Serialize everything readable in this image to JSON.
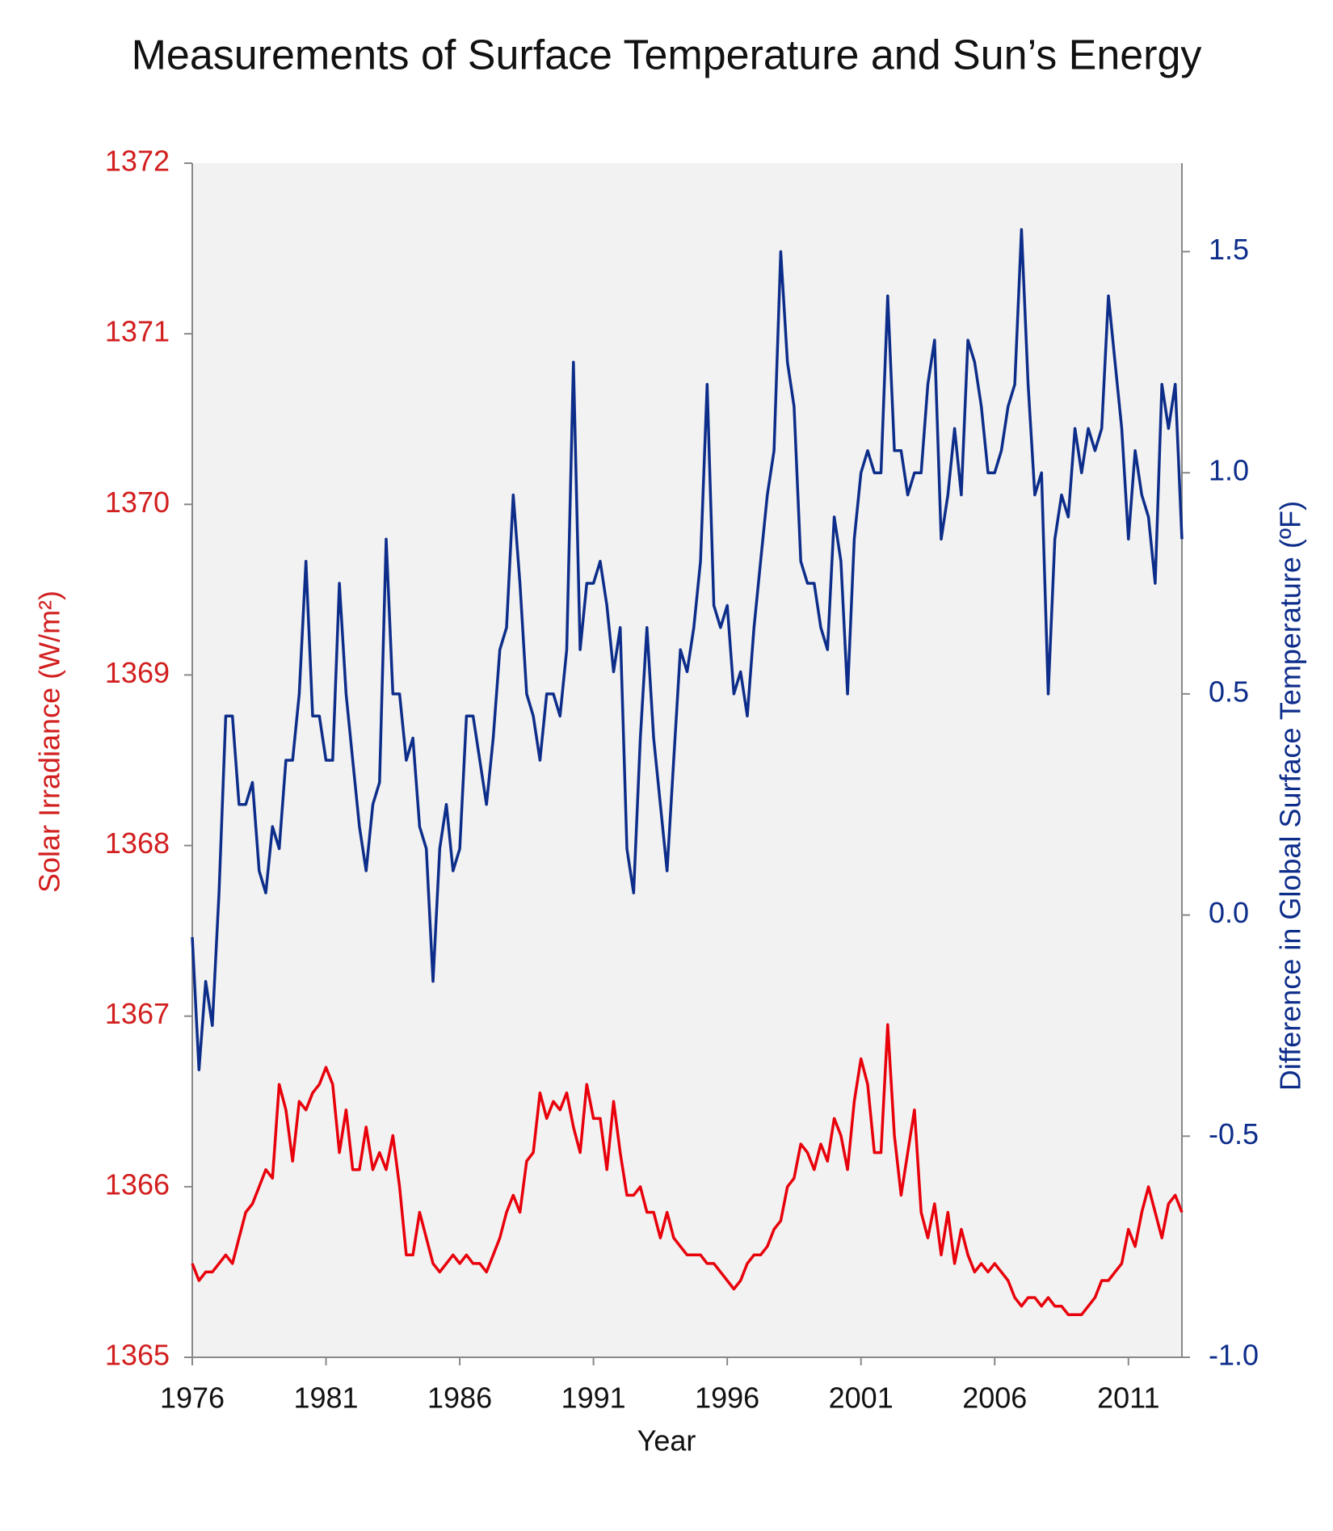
{
  "chart_data": {
    "type": "line",
    "title": "Measurements of Surface Temperature and Sun’s Energy",
    "x_label": "Year",
    "y_label": "Solar Irradiance (W/m²)",
    "y2_label": "Difference in Global Surface Temperature (ºF)",
    "x": [
      1976,
      1976.25,
      1976.5,
      1976.75,
      1977,
      1977.25,
      1977.5,
      1977.75,
      1978,
      1978.25,
      1978.5,
      1978.75,
      1979,
      1979.25,
      1979.5,
      1979.75,
      1980,
      1980.25,
      1980.5,
      1980.75,
      1981,
      1981.25,
      1981.5,
      1981.75,
      1982,
      1982.25,
      1982.5,
      1982.75,
      1983,
      1983.25,
      1983.5,
      1983.75,
      1984,
      1984.25,
      1984.5,
      1984.75,
      1985,
      1985.25,
      1985.5,
      1985.75,
      1986,
      1986.25,
      1986.5,
      1986.75,
      1987,
      1987.25,
      1987.5,
      1987.75,
      1988,
      1988.25,
      1988.5,
      1988.75,
      1989,
      1989.25,
      1989.5,
      1989.75,
      1990,
      1990.25,
      1990.5,
      1990.75,
      1991,
      1991.25,
      1991.5,
      1991.75,
      1992,
      1992.25,
      1992.5,
      1992.75,
      1993,
      1993.25,
      1993.5,
      1993.75,
      1994,
      1994.25,
      1994.5,
      1994.75,
      1995,
      1995.25,
      1995.5,
      1995.75,
      1996,
      1996.25,
      1996.5,
      1996.75,
      1997,
      1997.25,
      1997.5,
      1997.75,
      1998,
      1998.25,
      1998.5,
      1998.75,
      1999,
      1999.25,
      1999.5,
      1999.75,
      2000,
      2000.25,
      2000.5,
      2000.75,
      2001,
      2001.25,
      2001.5,
      2001.75,
      2002,
      2002.25,
      2002.5,
      2002.75,
      2003,
      2003.25,
      2003.5,
      2003.75,
      2004,
      2004.25,
      2004.5,
      2004.75,
      2005,
      2005.25,
      2005.5,
      2005.75,
      2006,
      2006.25,
      2006.5,
      2006.75,
      2007,
      2007.25,
      2007.5,
      2007.75,
      2008,
      2008.25,
      2008.5,
      2008.75,
      2009,
      2009.25,
      2009.5,
      2009.75,
      2010,
      2010.25,
      2010.5,
      2010.75,
      2011,
      2011.25,
      2011.5,
      2011.75,
      2012,
      2012.25,
      2012.5,
      2012.75,
      2013
    ],
    "series": [
      {
        "color": "#e8000b",
        "axis": "y",
        "values": [
          1365.55,
          1365.45,
          1365.5,
          1365.5,
          1365.55,
          1365.6,
          1365.55,
          1365.7,
          1365.85,
          1365.9,
          1366.0,
          1366.1,
          1366.05,
          1366.6,
          1366.45,
          1366.15,
          1366.5,
          1366.45,
          1366.55,
          1366.6,
          1366.7,
          1366.6,
          1366.2,
          1366.45,
          1366.1,
          1366.1,
          1366.35,
          1366.1,
          1366.2,
          1366.1,
          1366.3,
          1366.0,
          1365.6,
          1365.6,
          1365.85,
          1365.7,
          1365.55,
          1365.5,
          1365.55,
          1365.6,
          1365.55,
          1365.6,
          1365.55,
          1365.55,
          1365.5,
          1365.6,
          1365.7,
          1365.85,
          1365.95,
          1365.85,
          1366.15,
          1366.2,
          1366.55,
          1366.4,
          1366.5,
          1366.45,
          1366.55,
          1366.35,
          1366.2,
          1366.6,
          1366.4,
          1366.4,
          1366.1,
          1366.5,
          1366.2,
          1365.95,
          1365.95,
          1366.0,
          1365.85,
          1365.85,
          1365.7,
          1365.85,
          1365.7,
          1365.65,
          1365.6,
          1365.6,
          1365.6,
          1365.55,
          1365.55,
          1365.5,
          1365.45,
          1365.4,
          1365.45,
          1365.55,
          1365.6,
          1365.6,
          1365.65,
          1365.75,
          1365.8,
          1366.0,
          1366.05,
          1366.25,
          1366.2,
          1366.1,
          1366.25,
          1366.15,
          1366.4,
          1366.3,
          1366.1,
          1366.5,
          1366.75,
          1366.6,
          1366.2,
          1366.2,
          1366.95,
          1366.3,
          1365.95,
          1366.2,
          1366.45,
          1365.85,
          1365.7,
          1365.9,
          1365.6,
          1365.85,
          1365.55,
          1365.75,
          1365.6,
          1365.5,
          1365.55,
          1365.5,
          1365.55,
          1365.5,
          1365.45,
          1365.35,
          1365.3,
          1365.35,
          1365.35,
          1365.3,
          1365.35,
          1365.3,
          1365.3,
          1365.25,
          1365.25,
          1365.25,
          1365.3,
          1365.35,
          1365.45,
          1365.45,
          1365.5,
          1365.55,
          1365.75,
          1365.65,
          1365.85,
          1366.0,
          1365.85,
          1365.7,
          1365.9,
          1365.95,
          1365.85
        ]
      },
      {
        "color": "#0d2d8a",
        "axis": "y2",
        "values": [
          -0.05,
          -0.35,
          -0.15,
          -0.25,
          0.05,
          0.45,
          0.45,
          0.25,
          0.25,
          0.3,
          0.1,
          0.05,
          0.2,
          0.15,
          0.35,
          0.35,
          0.5,
          0.8,
          0.45,
          0.45,
          0.35,
          0.35,
          0.75,
          0.5,
          0.35,
          0.2,
          0.1,
          0.25,
          0.3,
          0.85,
          0.5,
          0.5,
          0.35,
          0.4,
          0.2,
          0.15,
          -0.15,
          0.15,
          0.25,
          0.1,
          0.15,
          0.45,
          0.45,
          0.35,
          0.25,
          0.4,
          0.6,
          0.65,
          0.95,
          0.75,
          0.5,
          0.45,
          0.35,
          0.5,
          0.5,
          0.45,
          0.6,
          1.25,
          0.6,
          0.75,
          0.75,
          0.8,
          0.7,
          0.55,
          0.65,
          0.15,
          0.05,
          0.4,
          0.65,
          0.4,
          0.25,
          0.1,
          0.35,
          0.6,
          0.55,
          0.65,
          0.8,
          1.2,
          0.7,
          0.65,
          0.7,
          0.5,
          0.55,
          0.45,
          0.65,
          0.8,
          0.95,
          1.05,
          1.5,
          1.25,
          1.15,
          0.8,
          0.75,
          0.75,
          0.65,
          0.6,
          0.9,
          0.8,
          0.5,
          0.85,
          1.0,
          1.05,
          1.0,
          1.0,
          1.4,
          1.05,
          1.05,
          0.95,
          1.0,
          1.0,
          1.2,
          1.3,
          0.85,
          0.95,
          1.1,
          0.95,
          1.3,
          1.25,
          1.15,
          1.0,
          1.0,
          1.05,
          1.15,
          1.2,
          1.55,
          1.2,
          0.95,
          1.0,
          0.5,
          0.85,
          0.95,
          0.9,
          1.1,
          1.0,
          1.1,
          1.05,
          1.1,
          1.4,
          1.25,
          1.1,
          0.85,
          1.05,
          0.95,
          0.9,
          0.75,
          1.2,
          1.1,
          1.2,
          0.85
        ]
      }
    ],
    "xlim": [
      1976,
      2013
    ],
    "xticks": [
      1976,
      1981,
      1986,
      1991,
      1996,
      2001,
      2006,
      2011
    ],
    "ylim": [
      1365,
      1372
    ],
    "yticks": [
      1365,
      1366,
      1367,
      1368,
      1369,
      1370,
      1371,
      1372
    ],
    "y2lim": [
      -1,
      1.7
    ],
    "y2ticks": [
      {
        "value": -1,
        "label": "-1.0"
      },
      -0.5,
      {
        "value": 0,
        "label": "0.0"
      },
      0.5,
      {
        "value": 1,
        "label": "1.0"
      },
      1.5
    ],
    "grid": false
  }
}
